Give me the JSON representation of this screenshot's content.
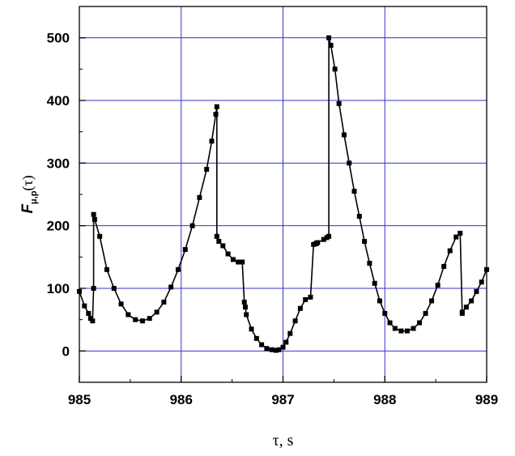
{
  "chart_data": {
    "type": "line",
    "title": "",
    "xlabel": "τ, s",
    "ylabel": {
      "main": "F",
      "subscript": "μ,p",
      "argument": "(τ)"
    },
    "xlim": [
      985,
      989
    ],
    "ylim": [
      -50,
      550
    ],
    "xticks": [
      985,
      986,
      987,
      988,
      989
    ],
    "yticks": [
      0,
      100,
      200,
      300,
      400,
      500
    ],
    "grid": true,
    "grid_color": "#3333cc",
    "line_color": "#000000",
    "marker": "square",
    "series": [
      {
        "x": [
          985.0,
          985.05,
          985.09,
          985.11,
          985.13,
          985.14,
          985.14,
          985.15,
          985.2,
          985.27,
          985.34,
          985.41,
          985.48,
          985.55,
          985.62,
          985.69,
          985.76,
          985.83,
          985.9,
          985.97,
          986.04,
          986.11,
          986.18,
          986.25,
          986.3,
          986.34,
          986.35,
          986.35,
          986.37,
          986.41,
          986.46,
          986.51,
          986.56,
          986.6,
          986.62,
          986.63,
          986.64,
          986.69,
          986.74,
          986.79,
          986.84,
          986.89,
          986.93,
          986.96,
          987.0,
          987.03,
          987.07,
          987.12,
          987.17,
          987.22,
          987.27,
          987.3,
          987.32,
          987.33,
          987.34,
          987.4,
          987.43,
          987.45,
          987.45,
          987.47,
          987.51,
          987.55,
          987.6,
          987.65,
          987.7,
          987.75,
          987.8,
          987.85,
          987.9,
          987.95,
          988.0,
          988.05,
          988.1,
          988.16,
          988.22,
          988.28,
          988.34,
          988.4,
          988.46,
          988.52,
          988.58,
          988.64,
          988.7,
          988.74,
          988.76,
          988.76,
          988.8,
          988.85,
          988.9,
          988.95,
          989.0
        ],
        "y": [
          95,
          72,
          60,
          52,
          48,
          100,
          218,
          210,
          183,
          130,
          100,
          75,
          58,
          50,
          48,
          52,
          62,
          78,
          102,
          130,
          162,
          200,
          245,
          290,
          335,
          378,
          390,
          183,
          175,
          168,
          155,
          146,
          142,
          142,
          78,
          70,
          58,
          35,
          20,
          10,
          4,
          2,
          1,
          2,
          6,
          14,
          28,
          48,
          68,
          82,
          86,
          170,
          171,
          172,
          173,
          178,
          181,
          183,
          500,
          488,
          450,
          395,
          345,
          300,
          255,
          215,
          175,
          140,
          108,
          80,
          60,
          45,
          36,
          32,
          32,
          36,
          45,
          60,
          80,
          105,
          135,
          160,
          182,
          188,
          60,
          62,
          70,
          80,
          95,
          110,
          130
        ]
      }
    ]
  }
}
